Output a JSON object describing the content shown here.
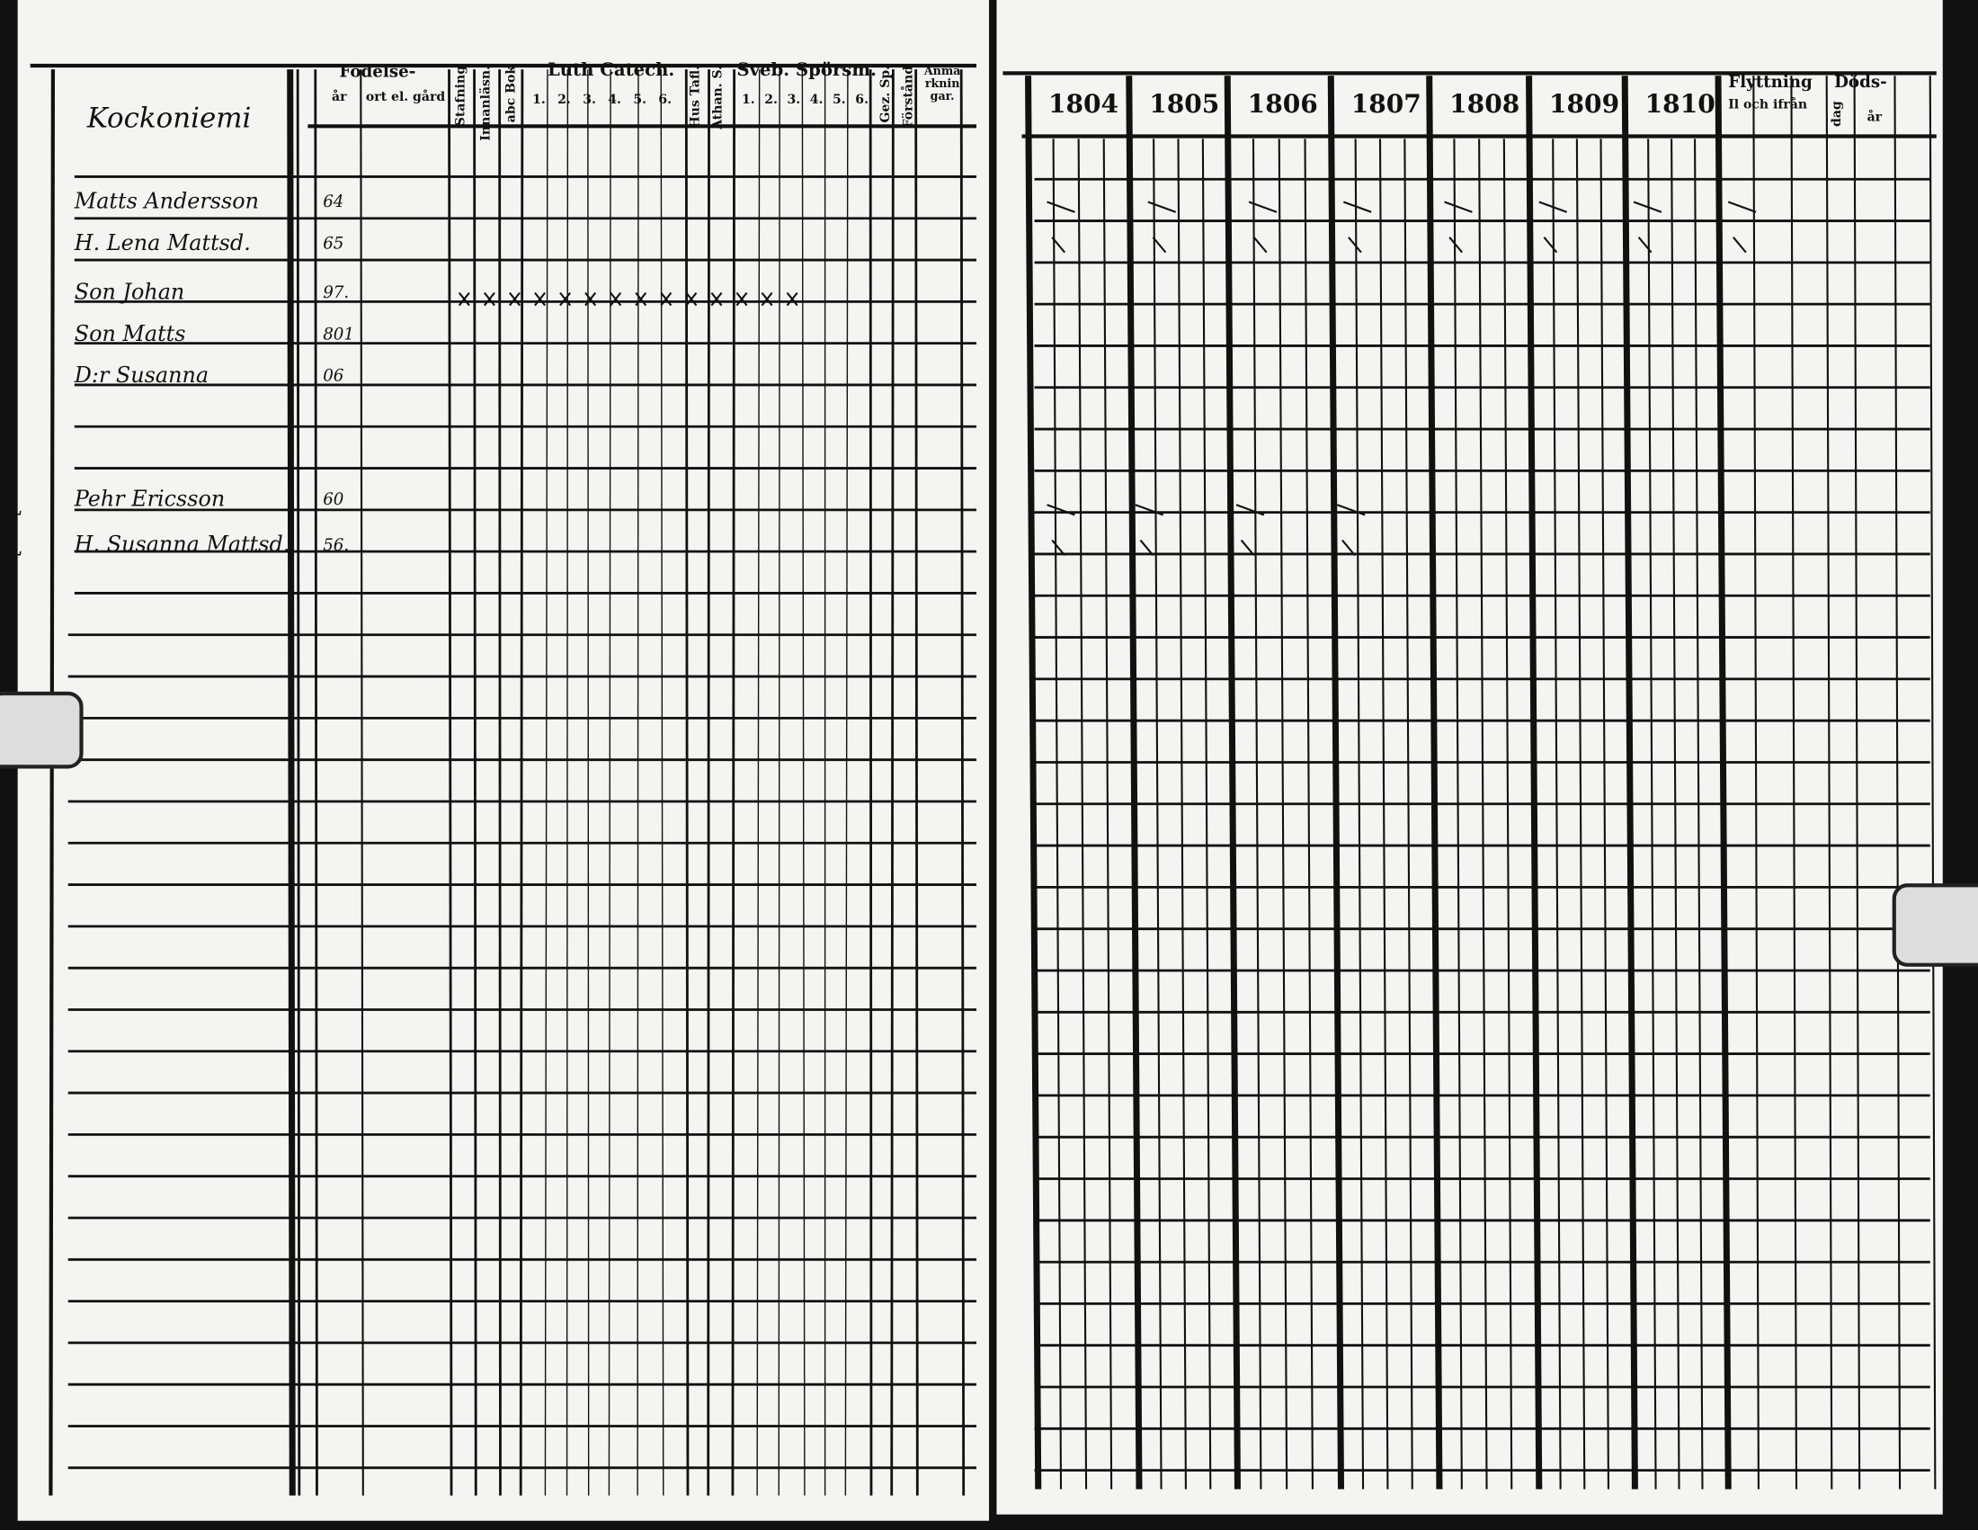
{
  "left_page": {
    "farm_name": "Kockoniemi",
    "headers": {
      "birth": "Födelse-",
      "birth_year": "år",
      "birth_place": "ort el. gård",
      "spelling": "Stafning",
      "reading": "Innanläsn.",
      "abc_book": "abc Bok",
      "luther_catechism": "Luth Catech.",
      "luther_subs": [
        "1.",
        "2.",
        "3.",
        "4.",
        "5.",
        "6."
      ],
      "house_table": "Hus Tafl.",
      "athanasian": "Athan. S.",
      "svebilius": "Sveb. Spörsm.",
      "svebilius_subs": [
        "1.",
        "2.",
        "3.",
        "4.",
        "5.",
        "6."
      ],
      "gez_sp": "Gez. Sp.",
      "understanding": "Förstånd",
      "remarks": "Anmärkningar."
    },
    "persons": [
      {
        "name": "Matts Andersson",
        "birth_year": "64"
      },
      {
        "name": "H. Lena Mattsd.",
        "birth_year": "65"
      },
      {
        "name": "Son Johan",
        "birth_year": "97."
      },
      {
        "name": "Son Matts",
        "birth_year": "801"
      },
      {
        "name": "D:r Susanna",
        "birth_year": "06"
      },
      {
        "name": "Pehr Ericsson",
        "birth_year": "60"
      },
      {
        "name": "H. Susanna Mattsd.",
        "birth_year": "56."
      }
    ],
    "margin_marks": [
      "L",
      "L"
    ]
  },
  "right_page": {
    "years": [
      "1804",
      "1805",
      "1806",
      "1807",
      "1808",
      "1809",
      "1810"
    ],
    "moving": "Flyttning",
    "moving_sub": "Il och ifrån",
    "death": "Döds-",
    "death_day": "dag",
    "death_year": "år"
  }
}
